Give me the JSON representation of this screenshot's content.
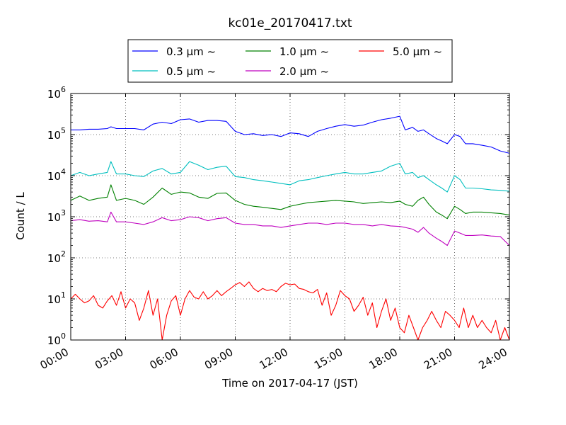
{
  "chart_data": {
    "type": "line",
    "title": "kc01e_20170417.txt",
    "xlabel": "Time on 2017-04-17 (JST)",
    "ylabel": "Count / L",
    "x_unit": "hours",
    "xlim": [
      0,
      24
    ],
    "ylim": [
      1,
      1000000
    ],
    "yscale": "log",
    "grid": true,
    "legend_position": "top-center",
    "x_tick_labels": [
      "00:00",
      "03:00",
      "06:00",
      "09:00",
      "12:00",
      "15:00",
      "18:00",
      "21:00",
      "24:00"
    ],
    "y_tick_labels": [
      {
        "base": "10",
        "exp": "0"
      },
      {
        "base": "10",
        "exp": "1"
      },
      {
        "base": "10",
        "exp": "2"
      },
      {
        "base": "10",
        "exp": "3"
      },
      {
        "base": "10",
        "exp": "4"
      },
      {
        "base": "10",
        "exp": "5"
      },
      {
        "base": "10",
        "exp": "6"
      }
    ],
    "series": [
      {
        "name": "0.3 μm ~",
        "color": "#0000ff",
        "x": [
          0,
          0.5,
          1,
          1.5,
          2,
          2.2,
          2.5,
          3,
          3.5,
          4,
          4.5,
          5,
          5.5,
          6,
          6.5,
          7,
          7.5,
          8,
          8.5,
          9,
          9.5,
          10,
          10.5,
          11,
          11.5,
          12,
          12.5,
          13,
          13.5,
          14,
          14.5,
          15,
          15.5,
          16,
          16.5,
          17,
          17.5,
          18,
          18.3,
          18.7,
          19,
          19.3,
          19.6,
          20,
          20.3,
          20.6,
          21,
          21.3,
          21.6,
          22,
          22.5,
          23,
          23.5,
          24
        ],
        "y": [
          130000,
          130000,
          135000,
          135000,
          140000,
          155000,
          140000,
          140000,
          140000,
          130000,
          180000,
          200000,
          185000,
          230000,
          240000,
          200000,
          220000,
          220000,
          210000,
          120000,
          100000,
          105000,
          95000,
          100000,
          90000,
          110000,
          105000,
          90000,
          120000,
          140000,
          160000,
          175000,
          160000,
          170000,
          200000,
          230000,
          250000,
          280000,
          130000,
          150000,
          120000,
          130000,
          105000,
          80000,
          70000,
          60000,
          100000,
          90000,
          60000,
          60000,
          55000,
          50000,
          40000,
          35000
        ]
      },
      {
        "name": "0.5 μm ~",
        "color": "#00bfbf",
        "x": [
          0,
          0.5,
          1,
          1.5,
          2,
          2.2,
          2.5,
          3,
          3.5,
          4,
          4.5,
          5,
          5.5,
          6,
          6.5,
          7,
          7.5,
          8,
          8.5,
          9,
          9.5,
          10,
          10.5,
          11,
          11.5,
          12,
          12.5,
          13,
          13.5,
          14,
          14.5,
          15,
          15.5,
          16,
          16.5,
          17,
          17.5,
          18,
          18.3,
          18.7,
          19,
          19.3,
          19.6,
          20,
          20.3,
          20.6,
          21,
          21.3,
          21.6,
          22,
          22.5,
          23,
          23.5,
          24
        ],
        "y": [
          10000,
          12000,
          10000,
          11000,
          12000,
          22000,
          11000,
          11000,
          10000,
          9500,
          13000,
          15000,
          11000,
          12000,
          22000,
          18000,
          14000,
          16000,
          17000,
          9500,
          9000,
          8000,
          7500,
          7000,
          6500,
          6000,
          7500,
          8000,
          9000,
          10000,
          11000,
          12000,
          11000,
          11000,
          12000,
          13000,
          17000,
          20000,
          11000,
          12000,
          9000,
          10000,
          8000,
          6000,
          5000,
          4000,
          10000,
          8000,
          5000,
          5000,
          4800,
          4500,
          4400,
          4200
        ]
      },
      {
        "name": "1.0 μm ~",
        "color": "#008000",
        "x": [
          0,
          0.5,
          1,
          1.5,
          2,
          2.2,
          2.5,
          3,
          3.5,
          4,
          4.5,
          5,
          5.5,
          6,
          6.5,
          7,
          7.5,
          8,
          8.5,
          9,
          9.5,
          10,
          10.5,
          11,
          11.5,
          12,
          12.5,
          13,
          13.5,
          14,
          14.5,
          15,
          15.5,
          16,
          16.5,
          17,
          17.5,
          18,
          18.3,
          18.7,
          19,
          19.3,
          19.6,
          20,
          20.3,
          20.6,
          21,
          21.3,
          21.6,
          22,
          22.5,
          23,
          23.5,
          24
        ],
        "y": [
          2500,
          3200,
          2500,
          2800,
          3000,
          6000,
          2500,
          2800,
          2500,
          2000,
          3000,
          5000,
          3500,
          4000,
          3800,
          3000,
          2800,
          3700,
          3800,
          2500,
          2000,
          1800,
          1700,
          1600,
          1500,
          1800,
          2000,
          2200,
          2300,
          2400,
          2500,
          2400,
          2300,
          2100,
          2200,
          2300,
          2200,
          2400,
          2000,
          1800,
          2500,
          3000,
          2000,
          1300,
          1100,
          900,
          1800,
          1500,
          1200,
          1300,
          1300,
          1250,
          1200,
          1100
        ]
      },
      {
        "name": "2.0 μm ~",
        "color": "#bf00bf",
        "x": [
          0,
          0.5,
          1,
          1.5,
          2,
          2.2,
          2.5,
          3,
          3.5,
          4,
          4.5,
          5,
          5.5,
          6,
          6.5,
          7,
          7.5,
          8,
          8.5,
          9,
          9.5,
          10,
          10.5,
          11,
          11.5,
          12,
          12.5,
          13,
          13.5,
          14,
          14.5,
          15,
          15.5,
          16,
          16.5,
          17,
          17.5,
          18,
          18.3,
          18.7,
          19,
          19.3,
          19.6,
          20,
          20.3,
          20.6,
          21,
          21.3,
          21.6,
          22,
          22.5,
          23,
          23.5,
          24
        ],
        "y": [
          800,
          850,
          780,
          800,
          750,
          1300,
          750,
          750,
          700,
          650,
          750,
          950,
          800,
          850,
          1000,
          950,
          800,
          900,
          950,
          700,
          650,
          650,
          600,
          600,
          550,
          600,
          650,
          700,
          700,
          650,
          700,
          700,
          650,
          650,
          600,
          650,
          600,
          580,
          550,
          500,
          420,
          550,
          400,
          300,
          250,
          200,
          450,
          400,
          350,
          350,
          360,
          340,
          330,
          200
        ]
      },
      {
        "name": "5.0 μm ~",
        "color": "#ff0000",
        "x": [
          0,
          0.25,
          0.5,
          0.75,
          1,
          1.25,
          1.5,
          1.75,
          2,
          2.25,
          2.5,
          2.75,
          3,
          3.25,
          3.5,
          3.75,
          4,
          4.25,
          4.5,
          4.75,
          5,
          5.25,
          5.5,
          5.75,
          6,
          6.25,
          6.5,
          6.75,
          7,
          7.25,
          7.5,
          7.75,
          8,
          8.25,
          8.5,
          8.75,
          9,
          9.25,
          9.5,
          9.75,
          10,
          10.25,
          10.5,
          10.75,
          11,
          11.25,
          11.5,
          11.75,
          12,
          12.25,
          12.5,
          12.75,
          13,
          13.25,
          13.5,
          13.75,
          14,
          14.25,
          14.5,
          14.75,
          15,
          15.25,
          15.5,
          15.75,
          16,
          16.25,
          16.5,
          16.75,
          17,
          17.25,
          17.5,
          17.75,
          18,
          18.25,
          18.5,
          18.75,
          19,
          19.25,
          19.5,
          19.75,
          20,
          20.25,
          20.5,
          20.75,
          21,
          21.25,
          21.5,
          21.75,
          22,
          22.25,
          22.5,
          22.75,
          23,
          23.25,
          23.5,
          23.75,
          24
        ],
        "y": [
          10,
          13,
          10,
          8,
          9,
          12,
          7,
          6,
          9,
          12,
          7,
          15,
          6,
          10,
          8,
          3,
          6,
          16,
          4,
          10,
          1,
          4,
          9,
          12,
          4,
          10,
          16,
          11,
          10,
          15,
          10,
          12,
          16,
          12,
          15,
          18,
          22,
          25,
          20,
          26,
          18,
          15,
          18,
          16,
          17,
          15,
          20,
          24,
          22,
          23,
          18,
          17,
          15,
          14,
          17,
          7,
          14,
          4,
          7,
          16,
          12,
          10,
          5,
          7,
          11,
          4,
          8,
          2,
          5,
          10,
          3,
          6,
          2,
          1.5,
          4,
          2,
          1,
          2,
          3,
          5,
          3,
          2,
          5,
          4,
          3,
          2,
          6,
          2,
          4,
          2,
          3,
          2,
          1.5,
          3,
          1,
          2,
          1
        ]
      }
    ]
  }
}
